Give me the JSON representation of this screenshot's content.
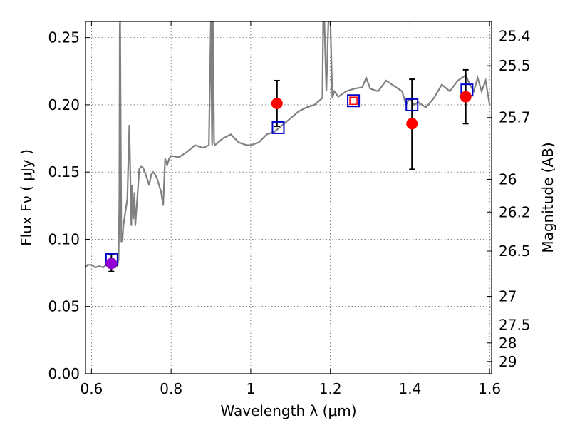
{
  "chart_data": {
    "type": "line",
    "xlabel": "Wavelength  λ (μm)",
    "ylabel": "Flux  Fν  ( μJy )",
    "ylabel_right": "Magnitude (AB)",
    "xlim": [
      0.585,
      1.605
    ],
    "ylim": [
      0.0,
      0.262
    ],
    "grid": true,
    "x_ticks": [
      0.6,
      0.8,
      1.0,
      1.2,
      1.4,
      1.6
    ],
    "x_tick_labels": [
      "0.6",
      "0.8",
      "1",
      "1.2",
      "1.4",
      "1.6"
    ],
    "y_ticks": [
      0.0,
      0.05,
      0.1,
      0.15,
      0.2,
      0.25
    ],
    "y_tick_labels": [
      "0.00",
      "0.05",
      "0.10",
      "0.15",
      "0.20",
      "0.25"
    ],
    "mag_ticks": [
      {
        "label": "25.4",
        "value": 25.4
      },
      {
        "label": "25.5",
        "value": 25.5
      },
      {
        "label": "25.7",
        "value": 25.7
      },
      {
        "label": "26",
        "value": 26.0
      },
      {
        "label": "26.2",
        "value": 26.2
      },
      {
        "label": "26.5",
        "value": 26.5
      },
      {
        "label": "27",
        "value": 27.0
      },
      {
        "label": "27.5",
        "value": 27.5
      },
      {
        "label": "28",
        "value": 28.0
      },
      {
        "label": "29",
        "value": 29.0
      }
    ],
    "colors": {
      "spectrum": "#808080",
      "observed": "#ff0000",
      "observed_highlight": "#9400d3",
      "model": "#0000cc",
      "model_highlight": "#ff0000",
      "errorbar": "#000000"
    },
    "series": [
      {
        "kind": "spectrum",
        "x": [
          0.585,
          0.59,
          0.6,
          0.61,
          0.62,
          0.63,
          0.64,
          0.65,
          0.655,
          0.66,
          0.665,
          0.668,
          0.67,
          0.671,
          0.672,
          0.675,
          0.678,
          0.68,
          0.685,
          0.69,
          0.695,
          0.7,
          0.702,
          0.705,
          0.708,
          0.71,
          0.715,
          0.72,
          0.725,
          0.73,
          0.74,
          0.745,
          0.75,
          0.755,
          0.76,
          0.765,
          0.77,
          0.775,
          0.78,
          0.785,
          0.79,
          0.795,
          0.8,
          0.82,
          0.84,
          0.86,
          0.88,
          0.895,
          0.9,
          0.903,
          0.905,
          0.908,
          0.91,
          0.93,
          0.95,
          0.97,
          0.99,
          1.0,
          1.02,
          1.04,
          1.06,
          1.08,
          1.1,
          1.12,
          1.14,
          1.16,
          1.18,
          1.182,
          1.185,
          1.19,
          1.195,
          1.2,
          1.205,
          1.21,
          1.22,
          1.24,
          1.26,
          1.28,
          1.29,
          1.3,
          1.32,
          1.34,
          1.36,
          1.38,
          1.39,
          1.4,
          1.41,
          1.42,
          1.44,
          1.46,
          1.48,
          1.5,
          1.52,
          1.53,
          1.54,
          1.55,
          1.56,
          1.57,
          1.58,
          1.59,
          1.6
        ],
        "y": [
          0.079,
          0.081,
          0.081,
          0.079,
          0.08,
          0.079,
          0.082,
          0.081,
          0.08,
          0.079,
          0.08,
          0.085,
          0.13,
          0.26,
          0.262,
          0.098,
          0.1,
          0.11,
          0.12,
          0.13,
          0.185,
          0.11,
          0.14,
          0.115,
          0.135,
          0.11,
          0.13,
          0.152,
          0.154,
          0.153,
          0.145,
          0.14,
          0.148,
          0.15,
          0.148,
          0.145,
          0.14,
          0.135,
          0.125,
          0.16,
          0.155,
          0.16,
          0.162,
          0.161,
          0.165,
          0.17,
          0.168,
          0.17,
          0.262,
          0.17,
          0.262,
          0.172,
          0.17,
          0.175,
          0.178,
          0.172,
          0.17,
          0.17,
          0.172,
          0.178,
          0.18,
          0.185,
          0.19,
          0.195,
          0.198,
          0.2,
          0.205,
          0.262,
          0.262,
          0.21,
          0.262,
          0.262,
          0.205,
          0.21,
          0.206,
          0.21,
          0.212,
          0.213,
          0.22,
          0.212,
          0.21,
          0.218,
          0.214,
          0.21,
          0.2,
          0.205,
          0.2,
          0.202,
          0.198,
          0.205,
          0.215,
          0.21,
          0.218,
          0.22,
          0.222,
          0.215,
          0.21,
          0.22,
          0.21,
          0.218,
          0.2
        ]
      },
      {
        "kind": "observed",
        "x": [
          0.65,
          1.066,
          1.405,
          1.54
        ],
        "y": [
          0.082,
          0.201,
          0.186,
          0.206
        ],
        "yerr_low": [
          0.076,
          0.184,
          0.152,
          0.186
        ],
        "yerr_high": [
          0.089,
          0.218,
          0.219,
          0.226
        ],
        "highlight": [
          true,
          false,
          false,
          false
        ]
      },
      {
        "kind": "model",
        "x": [
          0.651,
          1.069,
          1.258,
          1.405,
          1.543
        ],
        "y": [
          0.085,
          0.183,
          0.203,
          0.2,
          0.211
        ],
        "highlight": [
          false,
          false,
          true,
          false,
          false
        ]
      }
    ]
  }
}
